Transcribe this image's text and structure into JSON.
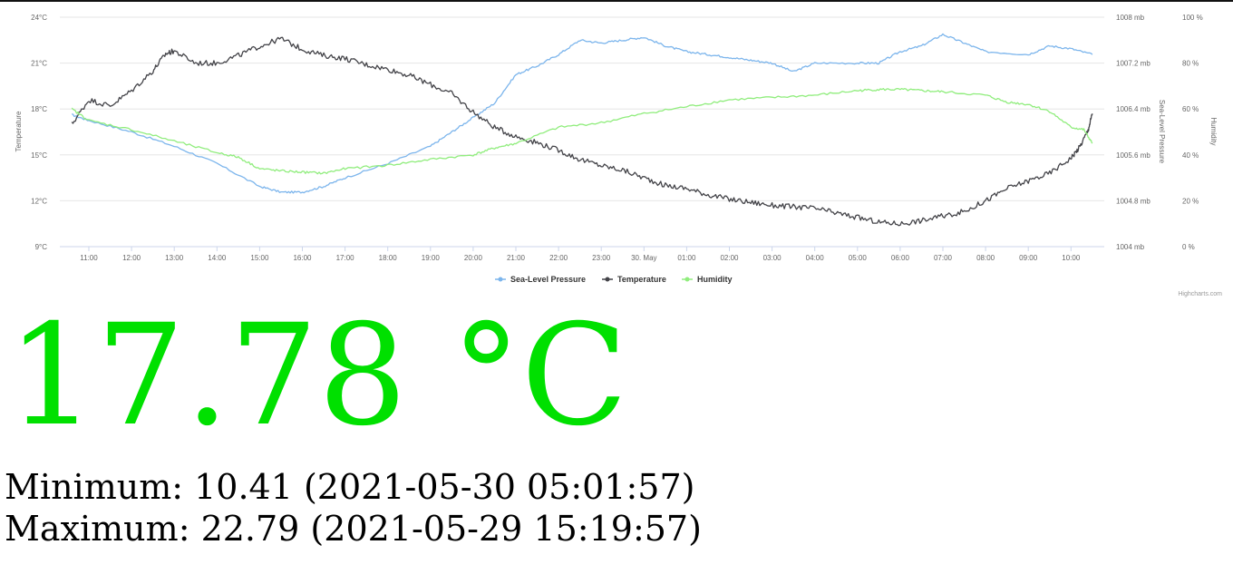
{
  "chart_data": {
    "type": "line",
    "credits": "Highcharts.com",
    "x_ticks": [
      "11:00",
      "12:00",
      "13:00",
      "14:00",
      "15:00",
      "16:00",
      "17:00",
      "18:00",
      "19:00",
      "20:00",
      "21:00",
      "22:00",
      "23:00",
      "30. May",
      "01:00",
      "02:00",
      "03:00",
      "04:00",
      "05:00",
      "06:00",
      "07:00",
      "08:00",
      "09:00",
      "10:00"
    ],
    "x_range_hours": [
      10.4,
      34.6
    ],
    "axes": {
      "temperature": {
        "label": "Temperature",
        "ticks": [
          "9°C",
          "12°C",
          "15°C",
          "18°C",
          "21°C",
          "24°C"
        ],
        "range": [
          9,
          24
        ]
      },
      "pressure": {
        "label": "Sea-Level Pressure",
        "ticks": [
          "1004 mb",
          "1004.8 mb",
          "1005.6 mb",
          "1006.4 mb",
          "1007.2 mb",
          "1008 mb"
        ],
        "range": [
          1004,
          1008
        ]
      },
      "humidity": {
        "label": "Humidity",
        "ticks": [
          "0 %",
          "20 %",
          "40 %",
          "60 %",
          "80 %",
          "100 %"
        ],
        "range": [
          0,
          100
        ]
      }
    },
    "legend_position": "bottom-center",
    "grid": true,
    "series": [
      {
        "name": "Sea-Level Pressure",
        "axis": "pressure",
        "color": "#7cb5ec",
        "points": [
          [
            10.6,
            1006.3
          ],
          [
            11,
            1006.2
          ],
          [
            12,
            1006.0
          ],
          [
            13,
            1005.75
          ],
          [
            14,
            1005.45
          ],
          [
            15,
            1005.05
          ],
          [
            15.5,
            1004.95
          ],
          [
            16,
            1004.95
          ],
          [
            16.5,
            1005.05
          ],
          [
            17,
            1005.2
          ],
          [
            18,
            1005.45
          ],
          [
            19,
            1005.75
          ],
          [
            19.5,
            1006.0
          ],
          [
            20,
            1006.25
          ],
          [
            20.5,
            1006.5
          ],
          [
            21,
            1007.0
          ],
          [
            21.5,
            1007.15
          ],
          [
            22,
            1007.35
          ],
          [
            22.5,
            1007.6
          ],
          [
            23,
            1007.55
          ],
          [
            23.5,
            1007.6
          ],
          [
            24,
            1007.65
          ],
          [
            24.5,
            1007.5
          ],
          [
            25,
            1007.4
          ],
          [
            25.5,
            1007.35
          ],
          [
            26,
            1007.3
          ],
          [
            26.5,
            1007.25
          ],
          [
            27,
            1007.2
          ],
          [
            27.5,
            1007.05
          ],
          [
            28,
            1007.2
          ],
          [
            29,
            1007.2
          ],
          [
            29.5,
            1007.2
          ],
          [
            30,
            1007.4
          ],
          [
            30.5,
            1007.5
          ],
          [
            31,
            1007.7
          ],
          [
            31.5,
            1007.55
          ],
          [
            32,
            1007.4
          ],
          [
            33,
            1007.35
          ],
          [
            33.5,
            1007.5
          ],
          [
            34,
            1007.45
          ],
          [
            34.5,
            1007.35
          ]
        ]
      },
      {
        "name": "Temperature",
        "axis": "temperature",
        "color": "#434348",
        "points": [
          [
            10.6,
            17.0
          ],
          [
            11,
            18.6
          ],
          [
            11.5,
            18.2
          ],
          [
            12,
            19.2
          ],
          [
            12.5,
            20.5
          ],
          [
            12.8,
            21.6
          ],
          [
            13,
            21.8
          ],
          [
            13.5,
            21.0
          ],
          [
            14,
            21.0
          ],
          [
            14.5,
            21.5
          ],
          [
            15,
            22.1
          ],
          [
            15.5,
            22.6
          ],
          [
            16,
            21.9
          ],
          [
            16.5,
            21.5
          ],
          [
            17,
            21.3
          ],
          [
            17.5,
            20.9
          ],
          [
            18,
            20.6
          ],
          [
            18.5,
            20.2
          ],
          [
            19,
            19.6
          ],
          [
            19.5,
            19.0
          ],
          [
            20,
            17.8
          ],
          [
            20.5,
            16.8
          ],
          [
            21,
            16.2
          ],
          [
            21.5,
            15.8
          ],
          [
            22,
            15.3
          ],
          [
            22.5,
            14.7
          ],
          [
            23,
            14.3
          ],
          [
            23.5,
            14.0
          ],
          [
            24,
            13.5
          ],
          [
            24.5,
            13.0
          ],
          [
            25,
            12.8
          ],
          [
            25.5,
            12.4
          ],
          [
            26,
            12.1
          ],
          [
            26.5,
            11.9
          ],
          [
            27,
            11.7
          ],
          [
            27.5,
            11.6
          ],
          [
            28,
            11.5
          ],
          [
            28.5,
            11.2
          ],
          [
            29,
            10.9
          ],
          [
            29.5,
            10.6
          ],
          [
            30,
            10.5
          ],
          [
            30.5,
            10.7
          ],
          [
            31,
            11.0
          ],
          [
            31.5,
            11.3
          ],
          [
            32,
            12.0
          ],
          [
            32.5,
            12.8
          ],
          [
            33,
            13.3
          ],
          [
            33.5,
            13.8
          ],
          [
            34,
            14.8
          ],
          [
            34.2,
            15.5
          ],
          [
            34.4,
            16.6
          ],
          [
            34.5,
            17.7
          ]
        ]
      },
      {
        "name": "Humidity",
        "axis": "humidity",
        "color": "#90ed7d",
        "points": [
          [
            10.6,
            60
          ],
          [
            11,
            55
          ],
          [
            12,
            51
          ],
          [
            13,
            46
          ],
          [
            14,
            41
          ],
          [
            14.5,
            39
          ],
          [
            15,
            34
          ],
          [
            15.5,
            33
          ],
          [
            16,
            32.5
          ],
          [
            16.5,
            32
          ],
          [
            17,
            34
          ],
          [
            18,
            35.5
          ],
          [
            19,
            38
          ],
          [
            20,
            40
          ],
          [
            20.5,
            43
          ],
          [
            21,
            45
          ],
          [
            22,
            52
          ],
          [
            23,
            54
          ],
          [
            24,
            58
          ],
          [
            25,
            61
          ],
          [
            26,
            64
          ],
          [
            27,
            65
          ],
          [
            28,
            66
          ],
          [
            29,
            68
          ],
          [
            29.5,
            68.5
          ],
          [
            30,
            68.5
          ],
          [
            30.5,
            68
          ],
          [
            31,
            67.5
          ],
          [
            32,
            66
          ],
          [
            32.5,
            63
          ],
          [
            33,
            62
          ],
          [
            33.5,
            59
          ],
          [
            34,
            52
          ],
          [
            34.3,
            51
          ],
          [
            34.5,
            45
          ]
        ]
      }
    ]
  },
  "current": {
    "temperature": "17.78 °C"
  },
  "stats": {
    "minimum": "Minimum: 10.41 (2021-05-30 05:01:57)",
    "maximum": "Maximum: 22.79 (2021-05-29 15:19:57)"
  }
}
